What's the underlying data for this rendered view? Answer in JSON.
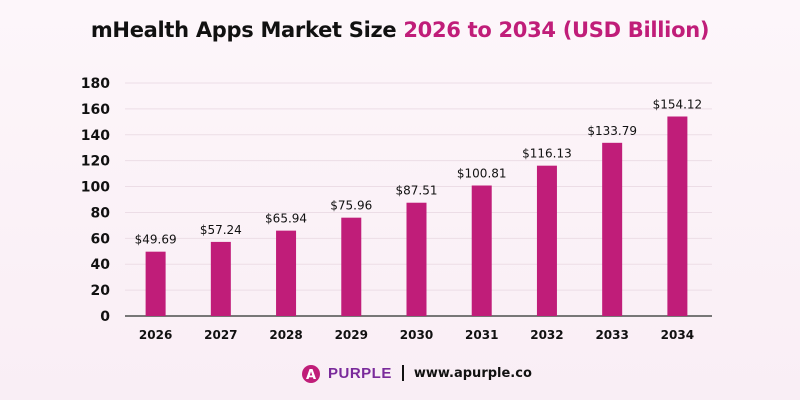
{
  "title": {
    "part1": "mHealth Apps Market Size ",
    "part2": "2026 to 2034 (USD Billion)"
  },
  "colors": {
    "bar": "#c01d79",
    "highlight": "#c01d79",
    "grid": "#ecdde6",
    "axis": "#777777"
  },
  "chart_data": {
    "type": "bar",
    "title": "mHealth Apps Market Size 2026 to 2034 (USD Billion)",
    "categories": [
      "2026",
      "2027",
      "2028",
      "2029",
      "2030",
      "2031",
      "2032",
      "2033",
      "2034"
    ],
    "values": [
      49.69,
      57.24,
      65.94,
      75.96,
      87.51,
      100.81,
      116.13,
      133.79,
      154.12
    ],
    "data_labels": [
      "$49.69",
      "$57.24",
      "$65.94",
      "$75.96",
      "$87.51",
      "$100.81",
      "$116.13",
      "$133.79",
      "$154.12"
    ],
    "yticks": [
      0,
      20,
      40,
      60,
      80,
      100,
      120,
      140,
      160,
      180
    ],
    "ylim": [
      0,
      180
    ],
    "grid": true,
    "xlabel": "",
    "ylabel": ""
  },
  "footer": {
    "logo_letter": "A",
    "logo_text": "PURPLE",
    "website": "www.apurple.co"
  }
}
